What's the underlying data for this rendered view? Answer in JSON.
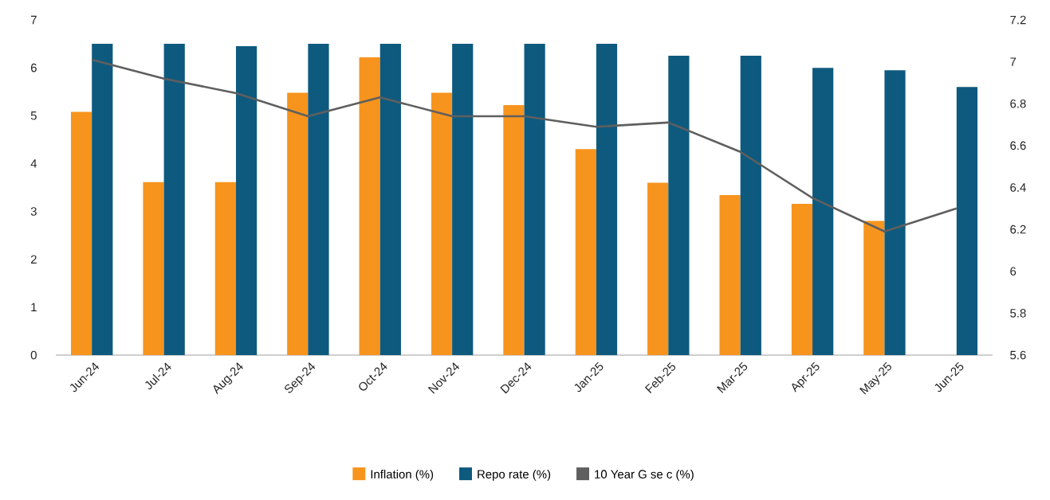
{
  "chart_data": {
    "type": "bar",
    "categories": [
      "Jun-24",
      "Jul-24",
      "Aug-24",
      "Sep-24",
      "Oct-24",
      "Nov-24",
      "Dec-24",
      "Jan-25",
      "Feb-25",
      "Mar-25",
      "Apr-25",
      "May-25",
      "Jun-25"
    ],
    "series": [
      {
        "name": "Inflation (%)",
        "color": "#f7941d",
        "values": [
          5.08,
          3.61,
          3.61,
          5.48,
          6.22,
          5.48,
          5.22,
          4.3,
          3.6,
          3.34,
          3.16,
          2.8,
          null
        ]
      },
      {
        "name": "Repo rate (%)",
        "color": "#0e5a7e",
        "values": [
          6.5,
          6.5,
          6.45,
          6.5,
          6.5,
          6.5,
          6.5,
          6.5,
          6.25,
          6.25,
          6.0,
          5.95,
          5.6
        ]
      },
      {
        "name": "10 Year G se c (%)",
        "type": "line",
        "axis": "y2",
        "color": "#5f5f5f",
        "values": [
          7.01,
          6.92,
          6.85,
          6.74,
          6.83,
          6.74,
          6.74,
          6.69,
          6.71,
          6.57,
          6.35,
          6.19,
          6.3
        ]
      }
    ],
    "ylim": [
      0,
      7
    ],
    "yticks": [
      0,
      1,
      2,
      3,
      4,
      5,
      6,
      7
    ],
    "y2lim": [
      5.6,
      7.2
    ],
    "y2ticks": [
      5.6,
      5.8,
      6,
      6.2,
      6.4,
      6.6,
      6.8,
      7,
      7.2
    ],
    "legend": "bottom"
  }
}
